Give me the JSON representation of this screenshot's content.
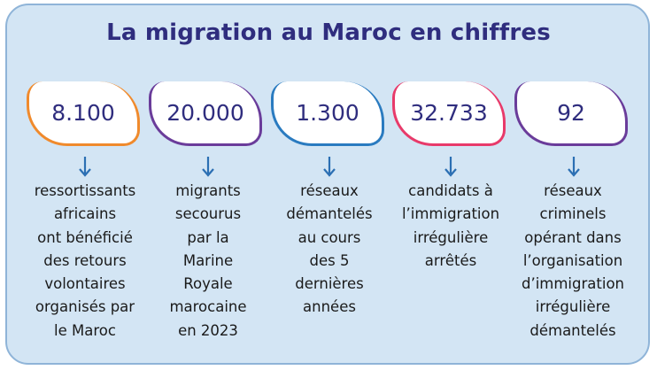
{
  "title": "La migration au Maroc en chiffres",
  "colors": {
    "background": "#d3e5f4",
    "title": "#2f2d7e",
    "arrow": "#2b6fb3",
    "card_1": "#f08a2c",
    "card_2": "#6a3c9a",
    "card_3": "#2a7bc0",
    "card_4": "#e83a6a",
    "card_5": "#6a3c9a"
  },
  "stats": [
    {
      "value": "8.100",
      "lines": [
        "ressortissants",
        "africains",
        "ont bénéficié",
        "des retours",
        "volontaires",
        "organisés par",
        "le Maroc"
      ]
    },
    {
      "value": "20.000",
      "lines": [
        "migrants",
        "secourus",
        "par la",
        "Marine",
        "Royale",
        "marocaine",
        "en 2023"
      ]
    },
    {
      "value": "1.300",
      "lines": [
        "réseaux",
        "démantelés",
        "au cours",
        "des 5",
        "dernières",
        "années"
      ]
    },
    {
      "value": "32.733",
      "lines": [
        "candidats à",
        "l’immigration",
        "irrégulière",
        "arrêtés"
      ]
    },
    {
      "value": "92",
      "lines": [
        "réseaux",
        "criminels",
        "opérant dans",
        "l’organisation",
        "d’immigration",
        "irrégulière",
        "démantelés"
      ]
    }
  ]
}
